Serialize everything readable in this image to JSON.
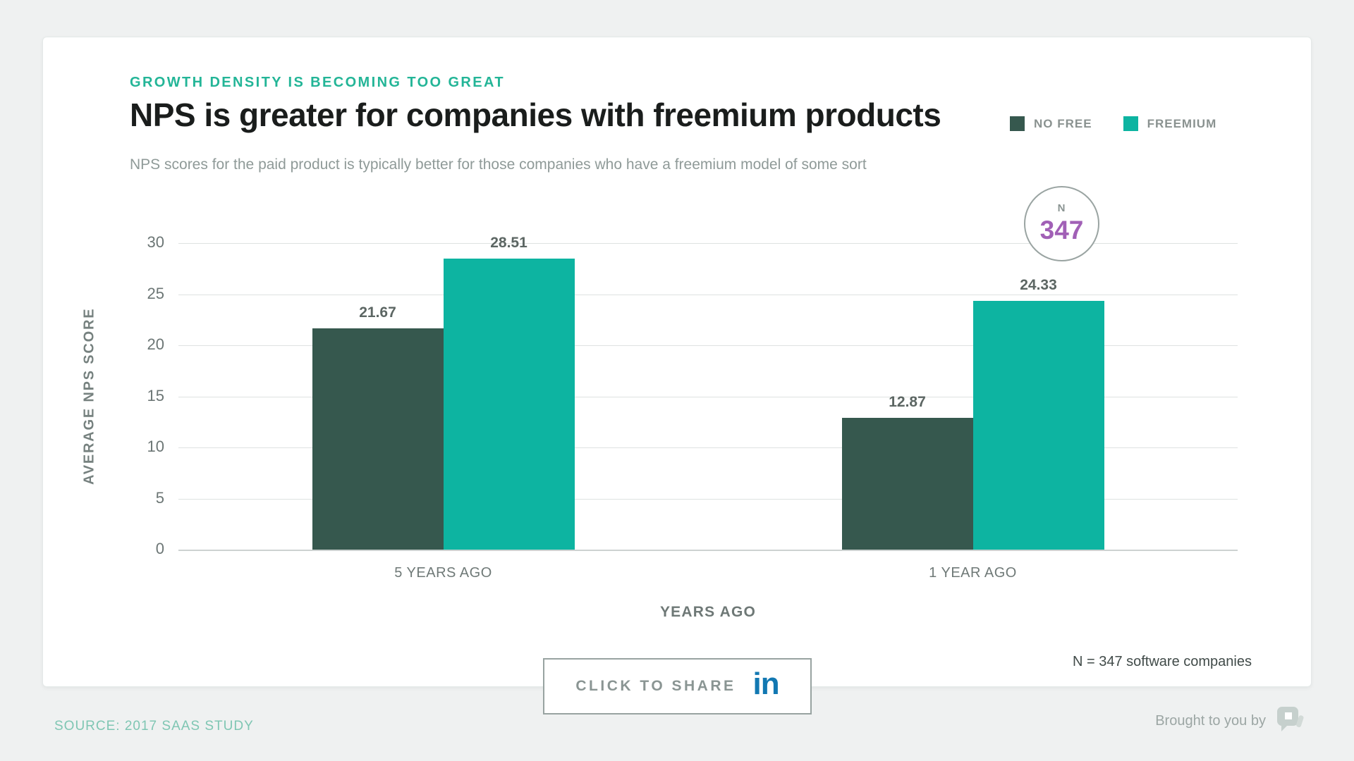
{
  "header": {
    "eyebrow": "GROWTH DENSITY IS BECOMING TOO GREAT",
    "title": "NPS is greater for companies with freemium products",
    "subtitle": "NPS scores for the paid product is typically better for those companies who have a freemium model of some sort"
  },
  "legend": {
    "items": [
      {
        "label": "NO FREE",
        "color": "#36584E"
      },
      {
        "label": "FREEMIUM",
        "color": "#0DB4A1"
      }
    ]
  },
  "chart_data": {
    "type": "bar",
    "categories": [
      "5 YEARS AGO",
      "1 YEAR AGO"
    ],
    "series": [
      {
        "name": "NO FREE",
        "color": "#36584E",
        "values": [
          21.67,
          12.87
        ]
      },
      {
        "name": "FREEMIUM",
        "color": "#0DB4A1",
        "values": [
          28.51,
          24.33
        ]
      }
    ],
    "value_labels": [
      [
        "21.67",
        "12.87"
      ],
      [
        "28.51",
        "24.33"
      ]
    ],
    "title": "NPS is greater for companies with freemium products",
    "xlabel": "YEARS AGO",
    "ylabel": "AVERAGE NPS SCORE",
    "ylim": [
      0,
      30
    ],
    "yticks": [
      0,
      5,
      10,
      15,
      20,
      25,
      30
    ],
    "grid": true,
    "legend_position": "top-right"
  },
  "badge": {
    "label": "N",
    "value": "347",
    "value_color": "#A160B6"
  },
  "annotations": {
    "sample_note": "N = 347 software companies"
  },
  "share": {
    "button_label": "CLICK TO SHARE",
    "linkedin_glyph": "in",
    "linkedin_color": "#1278B2"
  },
  "footer": {
    "source": "SOURCE: 2017 SAAS STUDY",
    "brought_by": "Brought to you by",
    "logo": "profitwell-logo"
  },
  "colors": {
    "accent_teal": "#23B597",
    "bar_dark": "#36584E",
    "bar_teal": "#0DB4A1",
    "purple": "#A160B6",
    "background": "#EFF1F1"
  }
}
